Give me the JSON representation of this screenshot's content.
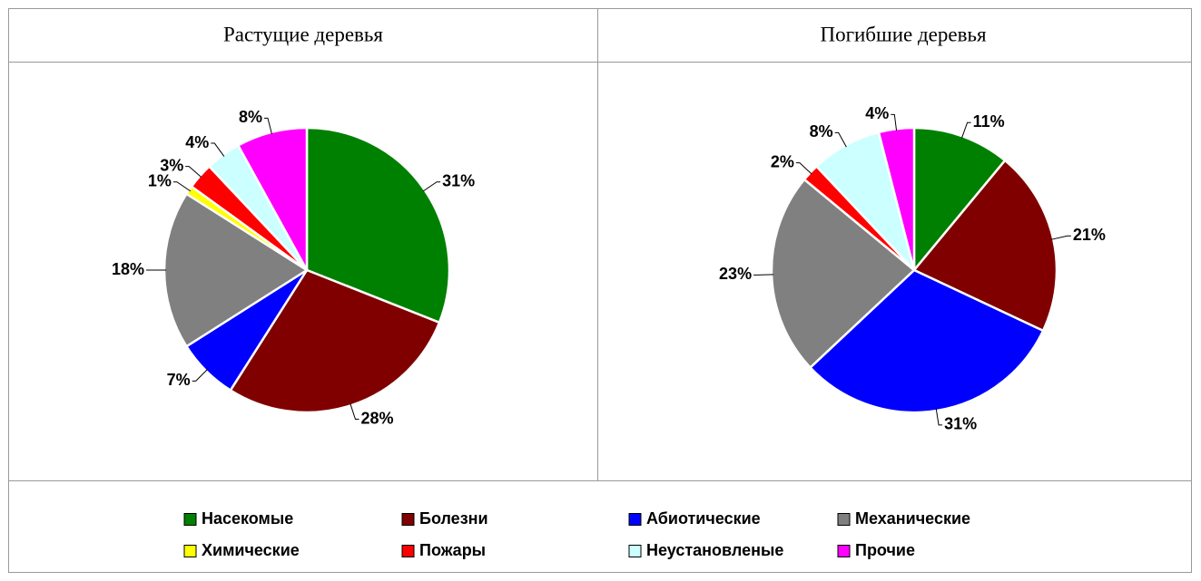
{
  "chart_data": [
    {
      "type": "pie",
      "title": "Растущие деревья",
      "categories": [
        "Насекомые",
        "Болезни",
        "Абиотические",
        "Механические",
        "Химические",
        "Пожары",
        "Неустановленые",
        "Прочие"
      ],
      "colors": [
        "#008000",
        "#800000",
        "#0000ff",
        "#808080",
        "#ffff00",
        "#ff0000",
        "#ccffff",
        "#ff00ff"
      ],
      "values": [
        31,
        28,
        7,
        18,
        1,
        3,
        4,
        8
      ],
      "value_labels": [
        "31%",
        "28%",
        "7%",
        "18%",
        "1%",
        "3%",
        "4%",
        "8%"
      ]
    },
    {
      "type": "pie",
      "title": "Погибшие деревья",
      "values": [
        11,
        21,
        31,
        23,
        0,
        2,
        8,
        4
      ],
      "value_labels": [
        "11%",
        "21%",
        "31%",
        "23%",
        null,
        "2%",
        "8%",
        "4%"
      ]
    }
  ]
}
